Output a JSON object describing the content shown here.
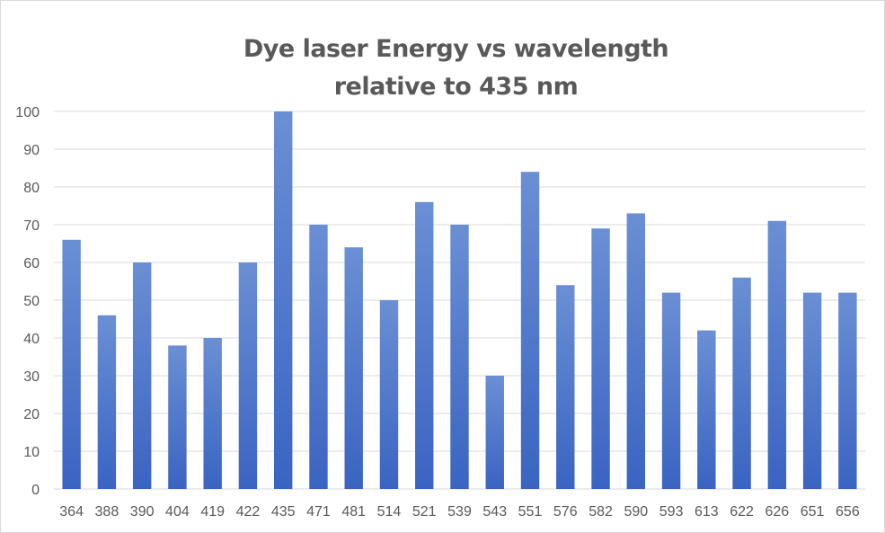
{
  "chart_data": {
    "type": "bar",
    "title": "Dye laser Energy vs wavelength",
    "subtitle": "relative to 435 nm",
    "xlabel": "",
    "ylabel": "",
    "ylim": [
      0,
      100
    ],
    "yticks": [
      0,
      10,
      20,
      30,
      40,
      50,
      60,
      70,
      80,
      90,
      100
    ],
    "grid": true,
    "legend": "none",
    "bar_color_top": "#6a8fd4",
    "bar_color_bottom": "#3a64c2",
    "gridline_color": "#d9d9d9",
    "categories": [
      "364",
      "388",
      "390",
      "404",
      "419",
      "422",
      "435",
      "471",
      "481",
      "514",
      "521",
      "539",
      "543",
      "551",
      "576",
      "582",
      "590",
      "593",
      "613",
      "622",
      "626",
      "651",
      "656"
    ],
    "values": [
      66,
      46,
      60,
      38,
      40,
      60,
      100,
      70,
      64,
      50,
      76,
      70,
      30,
      84,
      54,
      69,
      73,
      52,
      42,
      56,
      71,
      52,
      52
    ]
  }
}
